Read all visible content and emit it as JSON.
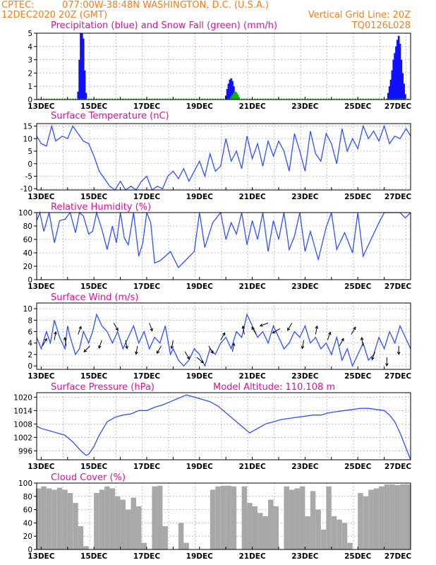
{
  "header": {
    "source": "CPTEC:",
    "location": "077:00W-38:48N  WASHINGTON, D.C. (U.S.A.)",
    "run": "12DEC2020 20Z (GMT)",
    "grid_note": "Vertical Grid Line: 20Z",
    "model": "TQ0126L028"
  },
  "colors": {
    "header": "#f08020",
    "panel_title": "#e0109a",
    "precip": "#1010ff",
    "snow": "#10b010",
    "line": "#3050ff",
    "cloud": "#a8a8a8",
    "grid": "#9a9a9a"
  },
  "x_axis_labels": [
    "13DEC",
    "15DEC",
    "17DEC",
    "19DEC",
    "21DEC",
    "23DEC",
    "25DEC",
    "27DEC"
  ],
  "chart_data": [
    {
      "type": "bar",
      "title": "Precipitation (blue) and Snow Fall (green) (mm/h)",
      "ylim": [
        0,
        5
      ],
      "yticks": [
        0,
        1,
        2,
        3,
        4,
        5
      ],
      "series": [
        {
          "name": "Precipitation",
          "x": [
            14.4,
            14.45,
            14.5,
            14.55,
            14.6,
            14.65,
            14.7,
            20.0,
            20.05,
            20.1,
            20.15,
            20.2,
            20.25,
            20.3,
            20.35,
            20.4,
            26.15,
            26.2,
            26.25,
            26.3,
            26.35,
            26.4,
            26.45,
            26.5,
            26.55,
            26.6,
            26.65,
            26.7,
            26.75,
            26.8
          ],
          "values": [
            0.6,
            3.0,
            5.0,
            5.0,
            4.6,
            2.2,
            0.5,
            0.3,
            0.8,
            1.2,
            1.5,
            1.6,
            1.4,
            1.0,
            0.6,
            0.2,
            0.5,
            1.0,
            1.5,
            2.2,
            3.0,
            3.5,
            4.0,
            4.5,
            4.8,
            4.2,
            3.0,
            2.0,
            1.2,
            0.4
          ]
        },
        {
          "name": "Snow Fall",
          "x": [
            20.2,
            20.25,
            20.3,
            20.35,
            20.4,
            20.45,
            20.5
          ],
          "values": [
            0.2,
            0.35,
            0.5,
            0.6,
            0.55,
            0.4,
            0.2
          ]
        }
      ]
    },
    {
      "type": "line",
      "title": "Surface Temperature (nC)",
      "ylim": [
        -10.5,
        16
      ],
      "yticks": [
        -10,
        -5,
        0,
        5,
        10,
        15
      ],
      "x": [
        12.83,
        13.0,
        13.2,
        13.4,
        13.55,
        13.8,
        14.0,
        14.2,
        14.4,
        14.6,
        14.8,
        15.0,
        15.2,
        15.4,
        15.6,
        15.8,
        16.0,
        16.2,
        16.4,
        16.6,
        16.8,
        17.0,
        17.2,
        17.4,
        17.6,
        17.8,
        18.0,
        18.2,
        18.4,
        18.6,
        18.8,
        19.0,
        19.2,
        19.4,
        19.6,
        19.8,
        20.0,
        20.2,
        20.4,
        20.6,
        20.8,
        21.0,
        21.2,
        21.4,
        21.6,
        21.8,
        22.0,
        22.2,
        22.4,
        22.6,
        22.8,
        23.0,
        23.2,
        23.4,
        23.6,
        23.8,
        24.0,
        24.2,
        24.4,
        24.6,
        24.8,
        25.0,
        25.2,
        25.4,
        25.6,
        25.8,
        26.0,
        26.2,
        26.4,
        26.6,
        26.83,
        27.0
      ],
      "values": [
        11,
        8,
        7,
        15,
        9,
        11,
        10,
        15,
        12,
        9,
        8,
        3,
        -3,
        -6,
        -9,
        -12,
        -7,
        -11,
        -9,
        -13,
        -7,
        -5,
        -11,
        -9,
        -10,
        -5,
        -3,
        -6,
        -2,
        -7,
        -3,
        1,
        -5,
        4,
        -3,
        -1,
        10,
        1,
        5,
        -2,
        11,
        2,
        8,
        -1,
        9,
        3,
        9,
        5,
        -3,
        12,
        5,
        -3,
        13,
        4,
        1,
        12,
        8,
        0,
        14,
        5,
        10,
        6,
        15,
        10,
        13,
        9,
        15,
        8,
        11,
        10,
        14,
        11
      ]
    },
    {
      "type": "line",
      "title": "Relative Humidity (%)",
      "ylim": [
        0,
        100
      ],
      "yticks": [
        0,
        20,
        40,
        60,
        80,
        100
      ],
      "x": [
        12.83,
        12.95,
        13.1,
        13.3,
        13.5,
        13.7,
        13.9,
        14.1,
        14.3,
        14.45,
        14.6,
        14.8,
        14.95,
        15.1,
        15.3,
        15.5,
        15.7,
        15.85,
        16.0,
        16.15,
        16.3,
        16.5,
        16.7,
        16.85,
        17.0,
        17.15,
        17.3,
        17.5,
        17.7,
        17.9,
        18.2,
        18.5,
        18.8,
        19.0,
        19.2,
        19.5,
        19.8,
        20.0,
        20.2,
        20.4,
        20.6,
        20.8,
        21.0,
        21.2,
        21.4,
        21.6,
        21.8,
        22.0,
        22.2,
        22.4,
        22.6,
        22.8,
        23.0,
        23.2,
        23.5,
        23.8,
        24.0,
        24.2,
        24.5,
        24.8,
        25.0,
        25.2,
        25.5,
        25.8,
        26.0,
        26.2,
        26.4,
        26.6,
        26.8,
        27.0
      ],
      "values": [
        88,
        100,
        72,
        100,
        55,
        88,
        90,
        100,
        70,
        100,
        95,
        68,
        72,
        100,
        75,
        45,
        80,
        55,
        100,
        62,
        52,
        100,
        35,
        55,
        100,
        85,
        25,
        28,
        35,
        42,
        18,
        30,
        42,
        100,
        48,
        85,
        100,
        60,
        85,
        68,
        100,
        52,
        88,
        60,
        100,
        42,
        88,
        60,
        100,
        45,
        65,
        100,
        42,
        72,
        30,
        78,
        100,
        45,
        70,
        40,
        100,
        35,
        60,
        85,
        100,
        100,
        100,
        100,
        92,
        100
      ]
    },
    {
      "type": "line",
      "title": "Surface Wind (m/s)",
      "ylim": [
        -0.6,
        11
      ],
      "yticks": [
        0,
        2,
        4,
        6,
        8,
        10
      ],
      "x": [
        12.83,
        13.0,
        13.2,
        13.35,
        13.5,
        13.7,
        13.9,
        14.0,
        14.1,
        14.3,
        14.45,
        14.6,
        14.8,
        14.95,
        15.1,
        15.3,
        15.5,
        15.7,
        15.9,
        16.1,
        16.3,
        16.5,
        16.7,
        16.9,
        17.1,
        17.3,
        17.5,
        17.7,
        17.9,
        18.0,
        18.2,
        18.4,
        18.6,
        18.8,
        19.0,
        19.2,
        19.4,
        19.6,
        19.8,
        20.0,
        20.2,
        20.4,
        20.6,
        20.8,
        21.0,
        21.2,
        21.4,
        21.6,
        21.8,
        22.0,
        22.2,
        22.4,
        22.6,
        22.8,
        23.0,
        23.2,
        23.4,
        23.6,
        23.8,
        24.0,
        24.2,
        24.4,
        24.6,
        24.8,
        25.0,
        25.2,
        25.4,
        25.6,
        25.8,
        26.0,
        26.2,
        26.4,
        26.6,
        26.8,
        27.0
      ],
      "values": [
        5,
        3,
        6,
        4,
        8,
        5,
        3,
        7,
        5,
        2,
        3,
        6,
        4,
        6,
        9,
        7,
        6,
        4,
        6,
        3,
        5,
        7,
        4,
        6,
        3,
        5,
        4,
        7,
        2,
        3,
        1,
        0,
        1,
        3,
        2,
        0,
        3,
        2,
        4,
        5,
        3,
        6,
        5,
        9,
        7,
        5,
        6,
        4,
        7,
        5,
        3,
        4,
        6,
        5,
        7,
        4,
        5,
        3,
        4,
        2,
        5,
        1,
        3,
        0,
        2,
        4,
        1,
        2,
        5,
        3,
        6,
        4,
        7,
        5,
        3
      ]
    },
    {
      "type": "line",
      "title": "Surface Pressure (hPa)",
      "annotation": "Model Altitude: 110.108 m",
      "ylim": [
        992,
        1022
      ],
      "yticks": [
        996,
        1002,
        1008,
        1014,
        1020
      ],
      "x": [
        12.83,
        13.0,
        13.3,
        13.6,
        13.9,
        14.2,
        14.5,
        14.7,
        14.8,
        15.0,
        15.2,
        15.5,
        15.8,
        16.1,
        16.4,
        16.7,
        17.0,
        17.3,
        17.6,
        17.9,
        18.2,
        18.5,
        18.8,
        19.1,
        19.4,
        19.7,
        20.0,
        20.3,
        20.6,
        20.9,
        21.2,
        21.5,
        21.8,
        22.1,
        22.4,
        22.7,
        23.0,
        23.3,
        23.6,
        23.9,
        24.2,
        24.5,
        24.8,
        25.1,
        25.4,
        25.7,
        26.0,
        26.2,
        26.4,
        26.6,
        26.8,
        27.0
      ],
      "values": [
        1007,
        1006,
        1005,
        1004,
        1003,
        1000,
        996,
        994,
        994.5,
        998,
        1003,
        1009,
        1011,
        1012,
        1012.5,
        1014,
        1014,
        1015.5,
        1016.5,
        1018,
        1019.5,
        1021,
        1020,
        1019,
        1018,
        1016,
        1013,
        1010,
        1007,
        1004,
        1006,
        1008,
        1009,
        1010,
        1010.5,
        1011,
        1011.5,
        1012,
        1012,
        1013,
        1013.5,
        1014,
        1014.5,
        1015,
        1015,
        1014.5,
        1014,
        1012,
        1009,
        1004,
        998,
        990
      ]
    },
    {
      "type": "bar",
      "title": "Cloud Cover (%)",
      "ylim": [
        0,
        100
      ],
      "yticks": [
        0,
        20,
        40,
        60,
        80,
        100
      ],
      "x": [
        12.9,
        13.1,
        13.3,
        13.5,
        13.7,
        13.9,
        14.1,
        14.3,
        14.5,
        14.7,
        14.9,
        15.1,
        15.3,
        15.5,
        15.7,
        15.9,
        16.1,
        16.3,
        16.5,
        16.7,
        16.9,
        17.1,
        17.3,
        17.5,
        17.7,
        17.9,
        18.1,
        18.3,
        18.5,
        18.7,
        18.9,
        19.1,
        19.3,
        19.5,
        19.7,
        19.9,
        20.1,
        20.3,
        20.5,
        20.7,
        20.9,
        21.1,
        21.3,
        21.5,
        21.7,
        21.9,
        22.1,
        22.3,
        22.5,
        22.7,
        22.9,
        23.1,
        23.3,
        23.5,
        23.7,
        23.9,
        24.1,
        24.3,
        24.5,
        24.7,
        24.9,
        25.1,
        25.3,
        25.5,
        25.7,
        25.9,
        26.1,
        26.3,
        26.5,
        26.7,
        26.9
      ],
      "values": [
        92,
        95,
        92,
        90,
        93,
        90,
        85,
        70,
        35,
        5,
        0,
        85,
        90,
        95,
        92,
        80,
        75,
        60,
        78,
        65,
        10,
        0,
        95,
        96,
        35,
        0,
        0,
        40,
        10,
        0,
        0,
        0,
        0,
        90,
        95,
        96,
        96,
        95,
        0,
        95,
        70,
        65,
        55,
        50,
        75,
        65,
        0,
        95,
        90,
        92,
        95,
        50,
        88,
        60,
        30,
        95,
        50,
        45,
        40,
        10,
        0,
        85,
        80,
        90,
        92,
        95,
        98,
        98,
        97,
        98,
        98
      ]
    }
  ]
}
